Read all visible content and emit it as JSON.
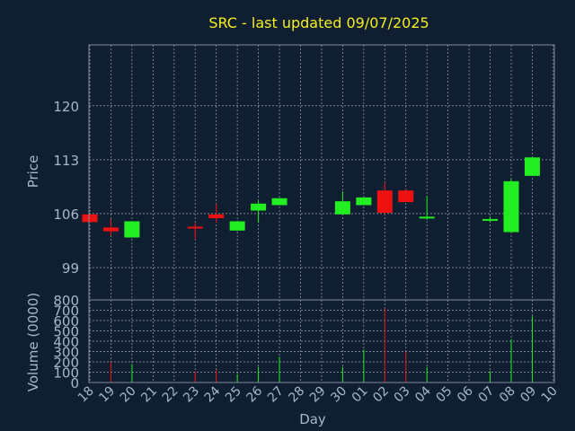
{
  "colors": {
    "background": "#0f1e30",
    "frame": "#7e8a9a",
    "grid": "#c9d3dd",
    "text": "#a5b8cc",
    "title": "#f5ef1e",
    "up": "#22ee22",
    "down": "#ee1111"
  },
  "chart_data": {
    "type": "candlestick",
    "title": "SRC - last updated 09/07/2025",
    "xlabel": "Day",
    "ylabel": "Price",
    "volume_label": "Volume (0000)",
    "grid": true,
    "price_ylim": [
      94.8,
      127.9
    ],
    "price_ticks": [
      99,
      106,
      113,
      120
    ],
    "volume_ylim": [
      0,
      800
    ],
    "volume_ticks": [
      0,
      100,
      200,
      300,
      400,
      500,
      600,
      700,
      800
    ],
    "x_tick_labels": [
      "18",
      "19",
      "20",
      "21",
      "22",
      "23",
      "24",
      "25",
      "26",
      "27",
      "28",
      "29",
      "30",
      "01",
      "02",
      "03",
      "04",
      "05",
      "06",
      "07",
      "08",
      "09",
      "10"
    ],
    "candles": [
      {
        "day": "18",
        "open": 105.9,
        "high": 105.9,
        "low": 104.9,
        "close": 104.9,
        "volume": 0
      },
      {
        "day": "19",
        "open": 104.2,
        "high": 105.3,
        "low": 103.2,
        "close": 103.7,
        "volume": 200
      },
      {
        "day": "20",
        "open": 102.9,
        "high": 105.0,
        "low": 102.9,
        "close": 105.0,
        "volume": 180
      },
      {
        "day": "23",
        "open": 104.3,
        "high": 104.8,
        "low": 102.6,
        "close": 104.1,
        "volume": 110
      },
      {
        "day": "24",
        "open": 105.9,
        "high": 107.3,
        "low": 104.8,
        "close": 105.4,
        "volume": 120
      },
      {
        "day": "25",
        "open": 103.8,
        "high": 105.0,
        "low": 103.8,
        "close": 105.0,
        "volume": 80
      },
      {
        "day": "26",
        "open": 106.4,
        "high": 107.7,
        "low": 104.8,
        "close": 107.3,
        "volume": 150
      },
      {
        "day": "27",
        "open": 107.1,
        "high": 108.0,
        "low": 107.1,
        "close": 108.0,
        "volume": 250
      },
      {
        "day": "30",
        "open": 105.9,
        "high": 108.9,
        "low": 105.9,
        "close": 107.6,
        "volume": 150
      },
      {
        "day": "01",
        "open": 107.1,
        "high": 108.1,
        "low": 107.1,
        "close": 108.1,
        "volume": 320
      },
      {
        "day": "02",
        "open": 109.0,
        "high": 110.0,
        "low": 105.9,
        "close": 106.1,
        "volume": 720
      },
      {
        "day": "03",
        "open": 109.0,
        "high": 109.2,
        "low": 107.5,
        "close": 107.5,
        "volume": 300
      },
      {
        "day": "04",
        "open": 105.4,
        "high": 108.3,
        "low": 105.2,
        "close": 105.6,
        "volume": 150
      },
      {
        "day": "07",
        "open": 105.1,
        "high": 105.6,
        "low": 104.9,
        "close": 105.3,
        "volume": 110
      },
      {
        "day": "08",
        "open": 103.6,
        "high": 110.5,
        "low": 103.6,
        "close": 110.2,
        "volume": 420
      },
      {
        "day": "09",
        "open": 110.9,
        "high": 113.3,
        "low": 110.9,
        "close": 113.3,
        "volume": 640
      }
    ]
  }
}
